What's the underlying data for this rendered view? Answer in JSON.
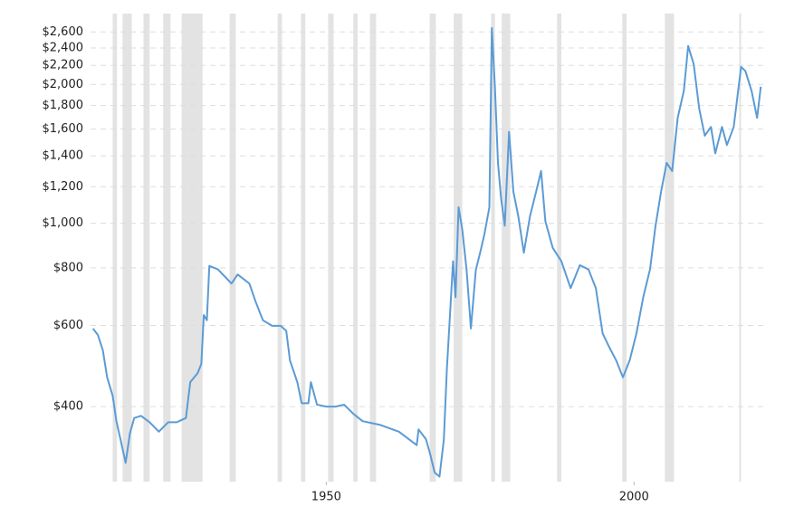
{
  "chart_data": {
    "type": "line",
    "x": [
      1912.1,
      1912.9,
      1913.7,
      1914.4,
      1915.3,
      1915.9,
      1916.6,
      1917.4,
      1918.1,
      1918.8,
      1919.9,
      1921.3,
      1922.8,
      1924.3,
      1925.7,
      1927.2,
      1927.9,
      1929.1,
      1929.7,
      1930.1,
      1930.6,
      1931.0,
      1932.4,
      1934.6,
      1935.6,
      1937.5,
      1938.5,
      1939.7,
      1941.2,
      1942.6,
      1943.5,
      1944.1,
      1945.3,
      1946.0,
      1947.1,
      1947.5,
      1948.5,
      1950.0,
      1951.5,
      1952.9,
      1954.4,
      1955.9,
      1958.8,
      1961.8,
      1964.7,
      1965.0,
      1966.2,
      1966.9,
      1967.6,
      1968.4,
      1969.1,
      1969.6,
      1970.1,
      1970.6,
      1971.0,
      1971.5,
      1972.1,
      1972.8,
      1973.5,
      1974.3,
      1975.0,
      1975.7,
      1976.5,
      1976.9,
      1977.4,
      1977.9,
      1978.4,
      1979.0,
      1979.7,
      1980.4,
      1981.2,
      1982.1,
      1983.1,
      1984.1,
      1984.9,
      1985.6,
      1986.8,
      1988.2,
      1989.7,
      1991.2,
      1992.6,
      1993.8,
      1994.9,
      1995.9,
      1997.1,
      1998.2,
      1999.3,
      2000.4,
      2001.5,
      2002.6,
      2003.5,
      2004.4,
      2005.3,
      2006.2,
      2007.1,
      2008.1,
      2008.8,
      2009.7,
      2010.6,
      2011.5,
      2012.5,
      2013.2,
      2014.3,
      2015.1,
      2016.2,
      2017.4,
      2018.1,
      2019.1,
      2020.0,
      2020.6
    ],
    "series": [
      {
        "color": "#5b9bd5",
        "values": [
          591,
          572,
          530,
          463,
          422,
          372,
          338,
          302,
          350,
          378,
          382,
          370,
          353,
          370,
          370,
          378,
          452,
          473,
          495,
          632,
          616,
          808,
          794,
          740,
          774,
          740,
          677,
          616,
          599,
          599,
          584,
          504,
          452,
          407,
          407,
          452,
          404,
          400,
          400,
          404,
          386,
          372,
          365,
          353,
          330,
          357,
          340,
          315,
          288,
          282,
          339,
          484,
          632,
          827,
          691,
          1083,
          968,
          792,
          591,
          792,
          863,
          947,
          1083,
          2653,
          1978,
          1352,
          1133,
          988,
          1579,
          1171,
          1036,
          863,
          1036,
          1171,
          1298,
          1010,
          884,
          827,
          723,
          811,
          794,
          723,
          577,
          541,
          504,
          463,
          504,
          577,
          691,
          794,
          988,
          1171,
          1352,
          1298,
          1693,
          1938,
          2424,
          2214,
          1771,
          1548,
          1618,
          1418,
          1618,
          1478,
          1618,
          2184,
          2138,
          1938,
          1693,
          1978
        ]
      }
    ],
    "shaded_periods": [
      [
        1915.3,
        1916.0
      ],
      [
        1916.9,
        1918.4
      ],
      [
        1920.3,
        1921.3
      ],
      [
        1923.5,
        1924.7
      ],
      [
        1926.5,
        1929.9
      ],
      [
        1934.3,
        1935.3
      ],
      [
        1942.1,
        1942.8
      ],
      [
        1945.9,
        1946.6
      ],
      [
        1950.3,
        1951.2
      ],
      [
        1954.4,
        1955.1
      ],
      [
        1957.1,
        1958.1
      ],
      [
        1966.8,
        1967.8
      ],
      [
        1970.7,
        1972.1
      ],
      [
        1976.8,
        1977.4
      ],
      [
        1978.5,
        1979.9
      ],
      [
        1987.5,
        1988.2
      ],
      [
        1998.1,
        1998.8
      ],
      [
        2005.0,
        2006.5
      ],
      [
        2017.1,
        2017.4
      ]
    ],
    "xlim": [
      1911.7,
      2021
    ],
    "xticks": [
      1950,
      2000
    ],
    "ylim": [
      275,
      2850
    ],
    "log_y": true,
    "grid": true,
    "yticks": [
      {
        "value": 400,
        "label": "$400"
      },
      {
        "value": 600,
        "label": "$600"
      },
      {
        "value": 800,
        "label": "$800"
      },
      {
        "value": 1000,
        "label": "$1,000"
      },
      {
        "value": 1200,
        "label": "$1,200"
      },
      {
        "value": 1400,
        "label": "$1,400"
      },
      {
        "value": 1600,
        "label": "$1,600"
      },
      {
        "value": 1800,
        "label": "$1,800"
      },
      {
        "value": 2000,
        "label": "$2,000"
      },
      {
        "value": 2200,
        "label": "$2,200"
      },
      {
        "value": 2400,
        "label": "$2,400"
      },
      {
        "value": 2600,
        "label": "$2,600"
      }
    ]
  }
}
